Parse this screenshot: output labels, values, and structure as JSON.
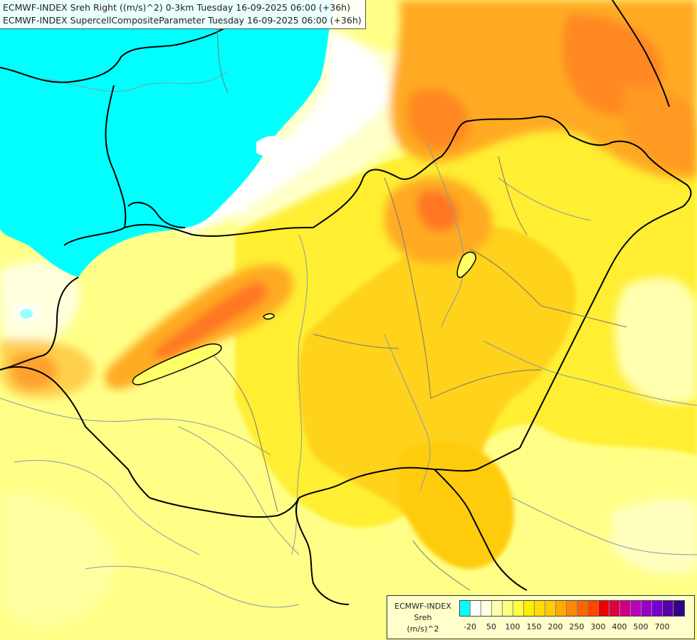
{
  "title": {
    "line1": "ECMWF-INDEX Sreh Right ((m/s)^2) 0-3km Tuesday 16-09-2025 06:00 (+36h)",
    "line2": "ECMWF-INDEX SupercellCompositeParameter Tuesday 16-09-2025 06:00 (+36h)"
  },
  "legend": {
    "model": "ECMWF-INDEX",
    "param": "Sreh",
    "unit": "(m/s)^2",
    "colors": [
      "#00ffff",
      "#ffffff",
      "#ffffe0",
      "#ffffb0",
      "#ffff80",
      "#ffff40",
      "#ffee00",
      "#ffdd00",
      "#ffcc00",
      "#ffaa00",
      "#ff8800",
      "#ff6600",
      "#ff4400",
      "#ee0000",
      "#dd0044",
      "#cc0088",
      "#bb00bb",
      "#9900cc",
      "#7700cc",
      "#5500aa",
      "#330088"
    ],
    "ticks": [
      {
        "label": "-20",
        "at": 1
      },
      {
        "label": "50",
        "at": 3
      },
      {
        "label": "100",
        "at": 5
      },
      {
        "label": "150",
        "at": 7
      },
      {
        "label": "200",
        "at": 9
      },
      {
        "label": "250",
        "at": 11
      },
      {
        "label": "300",
        "at": 13
      },
      {
        "label": "400",
        "at": 15
      },
      {
        "label": "500",
        "at": 17
      },
      {
        "label": "700",
        "at": 19
      }
    ]
  },
  "map": {
    "palette": {
      "cyan": "#00ffff",
      "white": "#ffffff",
      "pale": "#ffffc0",
      "light_yellow": "#ffff88",
      "yellow": "#ffff44",
      "gold": "#ffdd22",
      "amber": "#ffcc11",
      "orange": "#ffaa22",
      "deep_orange": "#ff7722",
      "red_orange": "#ff5522",
      "border": "#000000",
      "region_line": "#777777",
      "river": "#6688aa"
    }
  }
}
